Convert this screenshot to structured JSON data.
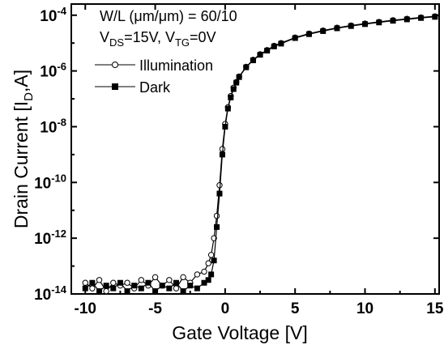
{
  "chart_data": {
    "type": "scatter",
    "xlabel": "Gate Voltage [V]",
    "ylabel": "Drain Current [I_D,A]",
    "ylabel_parts": {
      "main": "Drain Current [I",
      "sub": "D",
      "tail": ",A]"
    },
    "xlim": [
      -11,
      15.3
    ],
    "ylim": [
      -14,
      -3.6
    ],
    "yscale": "log",
    "xticks": [
      -10,
      -5,
      0,
      5,
      10,
      15
    ],
    "xtick_labels": [
      "-10",
      "-5",
      "0",
      "5",
      "10",
      "15"
    ],
    "yticks": [
      -14,
      -12,
      -10,
      -8,
      -6,
      -4
    ],
    "ytick_labels": [
      {
        "base": "10",
        "exp": "-14"
      },
      {
        "base": "10",
        "exp": "-12"
      },
      {
        "base": "10",
        "exp": "-10"
      },
      {
        "base": "10",
        "exp": "-8"
      },
      {
        "base": "10",
        "exp": "-6"
      },
      {
        "base": "10",
        "exp": "-4"
      }
    ],
    "annotations": {
      "line1": "W/L (μm/μm) = 60/10",
      "line2": {
        "v1": "V",
        "v1_sub": "DS",
        "v1_val": "=15V, ",
        "v2": "V",
        "v2_sub": "TG",
        "v2_val": "=0V"
      }
    },
    "legend": {
      "position": "top-left",
      "entries": [
        "Illumination",
        "Dark"
      ]
    },
    "series": [
      {
        "name": "Illumination",
        "marker": "open-circle",
        "x": [
          -10,
          -9.5,
          -9,
          -8.5,
          -8,
          -7.5,
          -7,
          -6.5,
          -6,
          -5.5,
          -5,
          -4.5,
          -4,
          -3.5,
          -3,
          -2.5,
          -2,
          -1.5,
          -1.2,
          -1.0,
          -0.8,
          -0.6,
          -0.4,
          -0.2,
          0,
          0.2,
          0.4,
          0.6,
          0.8,
          1,
          1.5,
          2,
          2.5,
          3,
          3.5,
          4,
          5,
          6,
          7,
          8,
          9,
          10,
          11,
          12,
          13,
          14,
          15
        ],
        "y": [
          -13.6,
          -13.8,
          -13.5,
          -13.9,
          -13.6,
          -13.7,
          -13.6,
          -13.8,
          -13.5,
          -13.7,
          -13.4,
          -13.7,
          -13.5,
          -13.8,
          -13.4,
          -13.6,
          -13.3,
          -13.2,
          -12.9,
          -12.6,
          -12.0,
          -11.2,
          -10.1,
          -8.8,
          -7.9,
          -7.3,
          -6.9,
          -6.6,
          -6.4,
          -6.2,
          -5.85,
          -5.6,
          -5.4,
          -5.25,
          -5.1,
          -5.0,
          -4.8,
          -4.66,
          -4.55,
          -4.45,
          -4.37,
          -4.3,
          -4.24,
          -4.18,
          -4.13,
          -4.08,
          -4.04
        ]
      },
      {
        "name": "Dark",
        "marker": "filled-square",
        "x": [
          -10,
          -9.5,
          -9,
          -8.5,
          -8,
          -7.5,
          -7,
          -6.5,
          -6,
          -5.5,
          -5,
          -4.5,
          -4,
          -3.5,
          -3,
          -2.5,
          -2,
          -1.5,
          -1.2,
          -1.0,
          -0.8,
          -0.6,
          -0.4,
          -0.2,
          0,
          0.2,
          0.4,
          0.6,
          0.8,
          1,
          1.5,
          2,
          2.5,
          3,
          3.5,
          4,
          5,
          6,
          7,
          8,
          9,
          10,
          11,
          12,
          13,
          14,
          15
        ],
        "y": [
          -13.8,
          -13.6,
          -13.9,
          -13.7,
          -13.8,
          -13.6,
          -13.9,
          -13.7,
          -13.8,
          -13.6,
          -13.9,
          -13.7,
          -13.8,
          -13.6,
          -13.9,
          -13.7,
          -13.8,
          -13.6,
          -13.5,
          -13.3,
          -12.8,
          -11.6,
          -10.4,
          -9.0,
          -8.0,
          -7.35,
          -6.95,
          -6.65,
          -6.42,
          -6.22,
          -5.87,
          -5.62,
          -5.42,
          -5.27,
          -5.12,
          -5.02,
          -4.82,
          -4.68,
          -4.57,
          -4.47,
          -4.39,
          -4.32,
          -4.26,
          -4.2,
          -4.15,
          -4.1,
          -4.06
        ]
      }
    ]
  }
}
